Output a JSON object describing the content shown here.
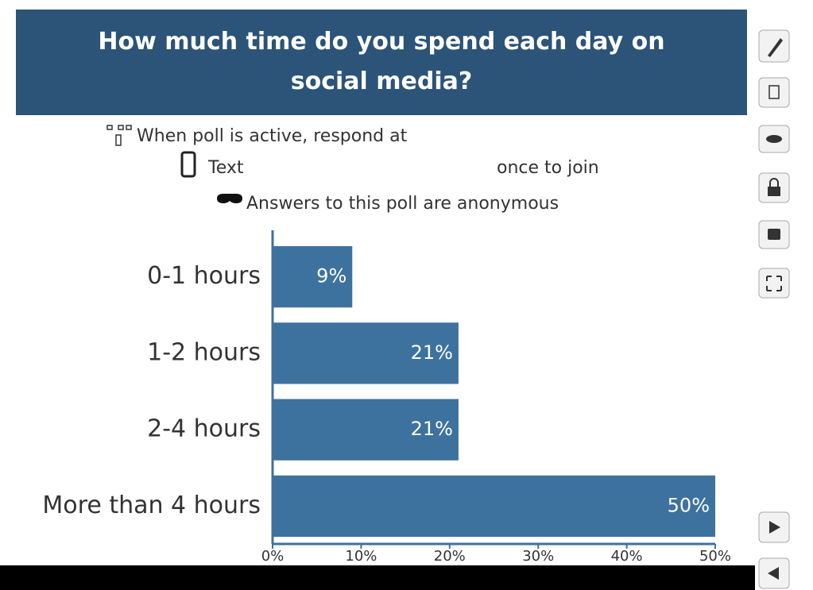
{
  "header": {
    "title": "How much time do you spend each day on social media?"
  },
  "instructions": {
    "respond": "When poll is active, respond at",
    "text": "Text",
    "join": "once to join",
    "anonymous": "Answers to this poll are anonymous"
  },
  "chart_data": {
    "type": "bar",
    "horizontal": true,
    "categories": [
      "0-1 hours",
      "1-2 hours",
      "2-4 hours",
      "More than 4 hours"
    ],
    "values": [
      9,
      21,
      21,
      50
    ],
    "value_labels": [
      "9%",
      "21%",
      "21%",
      "50%"
    ],
    "color": "#3e729e",
    "xlim": [
      0,
      50
    ],
    "xticks": [
      {
        "value": 0,
        "label": "0%"
      },
      {
        "value": 10,
        "label": "10%"
      },
      {
        "value": 20,
        "label": "20%"
      },
      {
        "value": 30,
        "label": "30%"
      },
      {
        "value": 40,
        "label": "40%"
      },
      {
        "value": 50,
        "label": "50%"
      }
    ]
  }
}
